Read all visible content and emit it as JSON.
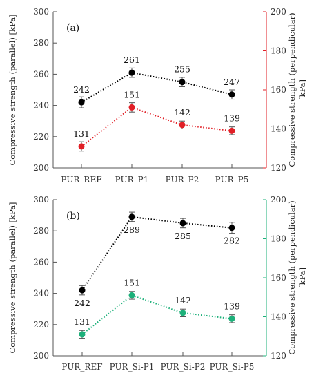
{
  "colors": {
    "series_parallel": "#000000",
    "series_perp_a": "#e11f26",
    "series_perp_b": "#1db07a",
    "axis": "#555555"
  },
  "chart_data": [
    {
      "type": "line",
      "panel_label": "(a)",
      "categories": [
        "PUR_REF",
        "PUR_P1",
        "PUR_P2",
        "PUR_P5"
      ],
      "ylabel_left": "Compressive strength (parallel) [kPa]",
      "ylabel_right": [
        "Compressive strength (perpendicular)",
        "[kPa]"
      ],
      "ylim_left": [
        200,
        300
      ],
      "yticks_left": [
        200,
        220,
        240,
        260,
        280,
        300
      ],
      "ylim_right": [
        120,
        200
      ],
      "yticks_right": [
        120,
        140,
        160,
        180,
        200
      ],
      "right_axis_color": "#e11f26",
      "grid": false,
      "series": [
        {
          "axis": "left",
          "color": "#000000",
          "values": [
            242,
            261,
            255,
            247
          ],
          "errors": [
            3.5,
            3,
            3,
            3
          ],
          "labels": [
            "242",
            "261",
            "255",
            "247"
          ],
          "label_position": "above"
        },
        {
          "axis": "right",
          "color": "#e11f26",
          "values": [
            131,
            151,
            142,
            139
          ],
          "errors": [
            2.4,
            2.4,
            2,
            2
          ],
          "labels": [
            "131",
            "151",
            "142",
            "139"
          ],
          "label_position": "above"
        }
      ]
    },
    {
      "type": "line",
      "panel_label": "(b)",
      "categories": [
        "PUR_REF",
        "PUR_Si-P1",
        "PUR_Si-P2",
        "PUR_Si-P5"
      ],
      "ylabel_left": "Compressive strength (parallel) [kPa]",
      "ylabel_right": [
        "Compressive strength (perpendicular)",
        "[kPa]"
      ],
      "ylim_left": [
        200,
        300
      ],
      "yticks_left": [
        200,
        220,
        240,
        260,
        280,
        300
      ],
      "ylim_right": [
        120,
        200
      ],
      "yticks_right": [
        120,
        140,
        160,
        180,
        200
      ],
      "right_axis_color": "#1db07a",
      "grid": false,
      "series": [
        {
          "axis": "left",
          "color": "#000000",
          "values": [
            242,
            289,
            285,
            282
          ],
          "errors": [
            3,
            3,
            3,
            3.5
          ],
          "labels": [
            "242",
            "289",
            "285",
            "282"
          ],
          "label_position": "below"
        },
        {
          "axis": "right",
          "color": "#1db07a",
          "values": [
            131,
            151,
            142,
            139
          ],
          "errors": [
            2,
            2,
            2,
            2
          ],
          "labels": [
            "131",
            "151",
            "142",
            "139"
          ],
          "label_position": "above"
        }
      ]
    }
  ]
}
